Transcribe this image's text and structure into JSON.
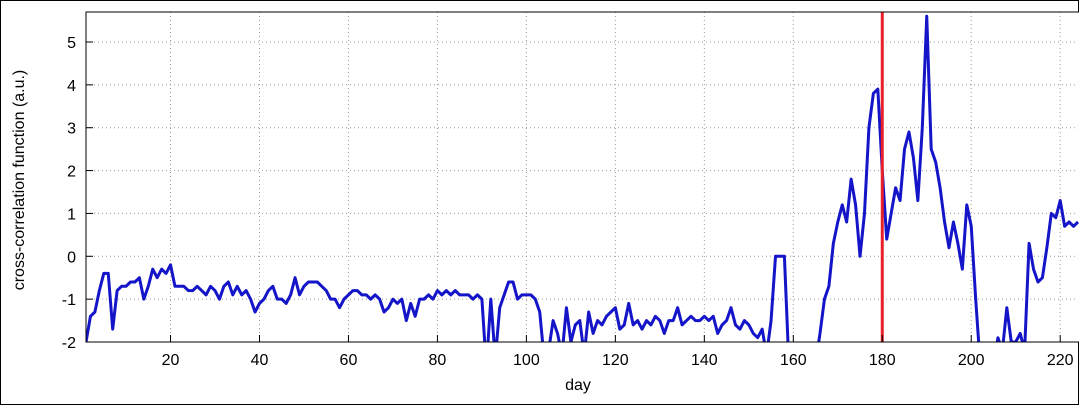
{
  "chart_data": {
    "type": "line",
    "xlabel": "day",
    "ylabel": "cross-correlation function (a.u.)",
    "x": [
      1,
      2,
      3,
      4,
      5,
      6,
      7,
      8,
      9,
      10,
      11,
      12,
      13,
      14,
      15,
      16,
      17,
      18,
      19,
      20,
      21,
      22,
      23,
      24,
      25,
      26,
      27,
      28,
      29,
      30,
      31,
      32,
      33,
      34,
      35,
      36,
      37,
      38,
      39,
      40,
      41,
      42,
      43,
      44,
      45,
      46,
      47,
      48,
      49,
      50,
      51,
      52,
      53,
      54,
      55,
      56,
      57,
      58,
      59,
      60,
      61,
      62,
      63,
      64,
      65,
      66,
      67,
      68,
      69,
      70,
      71,
      72,
      73,
      74,
      75,
      76,
      77,
      78,
      79,
      80,
      81,
      82,
      83,
      84,
      85,
      86,
      87,
      88,
      89,
      90,
      91,
      92,
      93,
      94,
      95,
      96,
      97,
      98,
      99,
      100,
      101,
      102,
      103,
      104,
      105,
      106,
      107,
      108,
      109,
      110,
      111,
      112,
      113,
      114,
      115,
      116,
      117,
      118,
      119,
      120,
      121,
      122,
      123,
      124,
      125,
      126,
      127,
      128,
      129,
      130,
      131,
      132,
      133,
      134,
      135,
      136,
      137,
      138,
      139,
      140,
      141,
      142,
      143,
      144,
      145,
      146,
      147,
      148,
      149,
      150,
      151,
      152,
      153,
      154,
      155,
      156,
      157,
      158,
      159,
      160,
      161,
      162,
      163,
      164,
      165,
      166,
      167,
      168,
      169,
      170,
      171,
      172,
      173,
      174,
      175,
      176,
      177,
      178,
      179,
      180,
      181,
      182,
      183,
      184,
      185,
      186,
      187,
      188,
      189,
      190,
      191,
      192,
      193,
      194,
      195,
      196,
      197,
      198,
      199,
      200,
      201,
      202,
      203,
      204,
      205,
      206,
      207,
      208,
      209,
      210,
      211,
      212,
      213,
      214,
      215,
      216,
      217,
      218,
      219,
      220,
      221,
      222,
      223,
      224
    ],
    "series": [
      {
        "color": "#1414c8",
        "values": [
          -2.0,
          -1.4,
          -1.3,
          -0.8,
          -0.4,
          -0.4,
          -1.7,
          -0.8,
          -0.7,
          -0.7,
          -0.6,
          -0.6,
          -0.5,
          -1.0,
          -0.7,
          -0.3,
          -0.5,
          -0.3,
          -0.4,
          -0.2,
          -0.7,
          -0.7,
          -0.7,
          -0.8,
          -0.8,
          -0.7,
          -0.8,
          -0.9,
          -0.7,
          -0.8,
          -1.0,
          -0.7,
          -0.6,
          -0.9,
          -0.7,
          -0.9,
          -0.8,
          -1.0,
          -1.3,
          -1.1,
          -1.0,
          -0.8,
          -0.7,
          -1.0,
          -1.0,
          -1.1,
          -0.9,
          -0.5,
          -0.9,
          -0.7,
          -0.6,
          -0.6,
          -0.6,
          -0.7,
          -0.8,
          -1.0,
          -1.0,
          -1.2,
          -1.0,
          -0.9,
          -0.8,
          -0.8,
          -0.9,
          -0.9,
          -1.0,
          -0.9,
          -1.0,
          -1.3,
          -1.2,
          -1.0,
          -1.1,
          -1.0,
          -1.5,
          -1.1,
          -1.4,
          -1.0,
          -1.0,
          -0.9,
          -1.0,
          -0.8,
          -0.9,
          -0.8,
          -0.9,
          -0.8,
          -0.9,
          -0.9,
          -0.9,
          -1.0,
          -0.9,
          -1.0,
          -2.6,
          -1.0,
          -2.4,
          -1.2,
          -0.9,
          -0.6,
          -0.6,
          -1.0,
          -0.9,
          -0.9,
          -0.9,
          -1.0,
          -1.3,
          -2.4,
          -2.2,
          -1.5,
          -1.8,
          -2.3,
          -1.2,
          -2.0,
          -1.6,
          -1.5,
          -2.3,
          -1.3,
          -1.8,
          -1.5,
          -1.6,
          -1.4,
          -1.3,
          -1.2,
          -1.7,
          -1.6,
          -1.1,
          -1.6,
          -1.5,
          -1.7,
          -1.5,
          -1.6,
          -1.4,
          -1.5,
          -1.8,
          -1.5,
          -1.5,
          -1.2,
          -1.6,
          -1.5,
          -1.4,
          -1.5,
          -1.5,
          -1.4,
          -1.5,
          -1.4,
          -1.8,
          -1.6,
          -1.5,
          -1.2,
          -1.6,
          -1.7,
          -1.5,
          -1.6,
          -1.8,
          -1.9,
          -1.7,
          -2.3,
          -1.5,
          0.0,
          0.0,
          0.0,
          -2.5,
          -2.5,
          -2.5,
          -2.5,
          -2.5,
          -2.5,
          -2.5,
          -1.8,
          -1.0,
          -0.7,
          0.3,
          0.8,
          1.2,
          0.8,
          1.8,
          1.2,
          0.0,
          1.0,
          3.0,
          3.8,
          3.9,
          2.0,
          0.4,
          1.0,
          1.6,
          1.3,
          2.5,
          2.9,
          2.3,
          1.3,
          3.0,
          5.6,
          2.5,
          2.2,
          1.6,
          0.8,
          0.2,
          0.8,
          0.3,
          -0.3,
          1.2,
          0.7,
          -1.0,
          -2.5,
          -2.5,
          -2.5,
          -2.5,
          -1.9,
          -2.2,
          -1.2,
          -2.0,
          -2.0,
          -1.8,
          -2.2,
          0.3,
          -0.3,
          -0.6,
          -0.5,
          0.2,
          1.0,
          0.9,
          1.3,
          0.7,
          0.8,
          0.7,
          0.8
        ]
      }
    ],
    "vline": {
      "x": 180,
      "color": "#e8202a"
    },
    "xlim": [
      1,
      224
    ],
    "xticks": [
      20,
      40,
      60,
      80,
      100,
      120,
      140,
      160,
      180,
      200,
      220
    ],
    "ylim": [
      -2,
      5.7
    ],
    "yticks": [
      -2,
      -1,
      0,
      1,
      2,
      3,
      4,
      5
    ],
    "grid": true
  }
}
